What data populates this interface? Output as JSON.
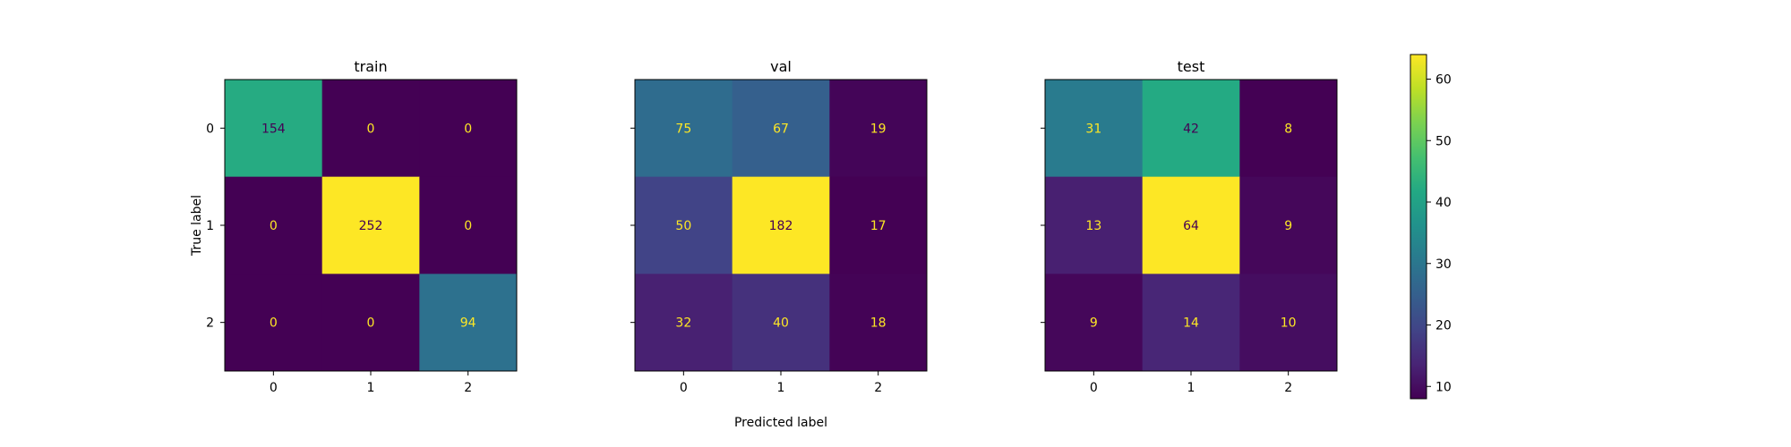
{
  "chart_data": [
    {
      "type": "heatmap",
      "title": "train",
      "x_categories": [
        "0",
        "1",
        "2"
      ],
      "y_categories": [
        "0",
        "1",
        "2"
      ],
      "values": [
        [
          154,
          0,
          0
        ],
        [
          0,
          252,
          0
        ],
        [
          0,
          0,
          94
        ]
      ],
      "ylabel": "True label"
    },
    {
      "type": "heatmap",
      "title": "val",
      "x_categories": [
        "0",
        "1",
        "2"
      ],
      "y_categories": [
        "0",
        "1",
        "2"
      ],
      "values": [
        [
          75,
          67,
          19
        ],
        [
          50,
          182,
          17
        ],
        [
          32,
          40,
          18
        ]
      ],
      "xlabel": "Predicted label"
    },
    {
      "type": "heatmap",
      "title": "test",
      "x_categories": [
        "0",
        "1",
        "2"
      ],
      "y_categories": [
        "0",
        "1",
        "2"
      ],
      "values": [
        [
          31,
          42,
          8
        ],
        [
          13,
          64,
          9
        ],
        [
          9,
          14,
          10
        ]
      ]
    }
  ],
  "colorbar": {
    "colormap": "viridis",
    "range": [
      8,
      64
    ],
    "ticks": [
      "10",
      "20",
      "30",
      "40",
      "50",
      "60"
    ]
  },
  "colors": {
    "low": "#440154",
    "high": "#fde725",
    "text_on_dark": "#fde725",
    "text_on_light": "#440154"
  }
}
